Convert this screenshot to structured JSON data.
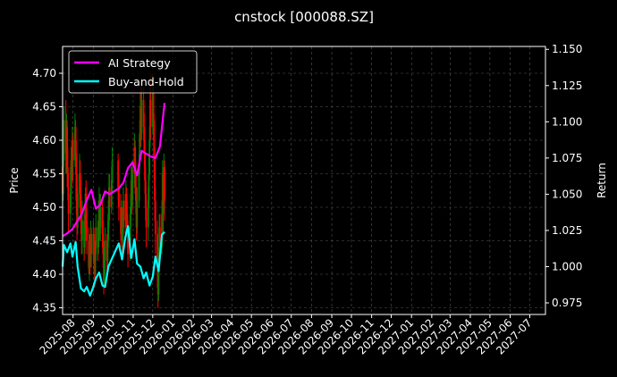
{
  "chart_data": {
    "type": "line",
    "title": "cnstock [000088.SZ]",
    "ylabel_left": "Price",
    "ylabel_right": "Return",
    "ylim_left": [
      4.34,
      4.74
    ],
    "ylim_right": [
      0.967,
      1.152
    ],
    "yticks_left": [
      "4.35",
      "4.40",
      "4.45",
      "4.50",
      "4.55",
      "4.60",
      "4.65",
      "4.70"
    ],
    "yticks_right": [
      "0.975",
      "1.000",
      "1.025",
      "1.050",
      "1.075",
      "1.100",
      "1.125",
      "1.150"
    ],
    "xlim": [
      "2025-07-16",
      "2027-07-25"
    ],
    "xticks": [
      "2025-08",
      "2025-09",
      "2025-10",
      "2025-11",
      "2025-12",
      "2026-01",
      "2026-02",
      "2026-03",
      "2026-04",
      "2026-05",
      "2026-06",
      "2026-07",
      "2026-08",
      "2026-09",
      "2026-10",
      "2026-11",
      "2026-12",
      "2027-01",
      "2027-02",
      "2027-03",
      "2027-04",
      "2027-05",
      "2027-06",
      "2027-07"
    ],
    "grid": true,
    "legend_position": "top-left",
    "colors": {
      "background": "#000000",
      "up_candle": "#008000",
      "down_candle": "#ff0000",
      "ai_strategy": "#ff00ff",
      "buy_and_hold": "#00ffff",
      "grid": "#555555",
      "axis": "#ffffff"
    },
    "candles": [
      {
        "date": "2025-07-16",
        "open": 4.56,
        "close": 4.52,
        "high": 4.58,
        "low": 4.5
      },
      {
        "date": "2025-07-17",
        "open": 4.52,
        "close": 4.57,
        "high": 4.6,
        "low": 4.51
      },
      {
        "date": "2025-07-18",
        "open": 4.57,
        "close": 4.63,
        "high": 4.65,
        "low": 4.56
      },
      {
        "date": "2025-07-21",
        "open": 4.63,
        "close": 4.58,
        "high": 4.66,
        "low": 4.55
      },
      {
        "date": "2025-07-22",
        "open": 4.58,
        "close": 4.62,
        "high": 4.64,
        "low": 4.55
      },
      {
        "date": "2025-07-23",
        "open": 4.62,
        "close": 4.56,
        "high": 4.63,
        "low": 4.53
      },
      {
        "date": "2025-07-24",
        "open": 4.56,
        "close": 4.53,
        "high": 4.59,
        "low": 4.51
      },
      {
        "date": "2025-07-25",
        "open": 4.53,
        "close": 4.49,
        "high": 4.55,
        "low": 4.46
      },
      {
        "date": "2025-07-28",
        "open": 4.49,
        "close": 4.52,
        "high": 4.56,
        "low": 4.47
      },
      {
        "date": "2025-07-29",
        "open": 4.52,
        "close": 4.57,
        "high": 4.59,
        "low": 4.5
      },
      {
        "date": "2025-07-30",
        "open": 4.57,
        "close": 4.55,
        "high": 4.6,
        "low": 4.53
      },
      {
        "date": "2025-07-31",
        "open": 4.55,
        "close": 4.6,
        "high": 4.62,
        "low": 4.54
      },
      {
        "date": "2025-08-01",
        "open": 4.6,
        "close": 4.57,
        "high": 4.61,
        "low": 4.54
      },
      {
        "date": "2025-08-04",
        "open": 4.57,
        "close": 4.62,
        "high": 4.64,
        "low": 4.56
      },
      {
        "date": "2025-08-05",
        "open": 4.62,
        "close": 4.58,
        "high": 4.63,
        "low": 4.55
      },
      {
        "date": "2025-08-06",
        "open": 4.58,
        "close": 4.51,
        "high": 4.6,
        "low": 4.49
      },
      {
        "date": "2025-08-07",
        "open": 4.51,
        "close": 4.47,
        "high": 4.53,
        "low": 4.45
      },
      {
        "date": "2025-08-08",
        "open": 4.47,
        "close": 4.52,
        "high": 4.55,
        "low": 4.46
      },
      {
        "date": "2025-08-11",
        "open": 4.52,
        "close": 4.55,
        "high": 4.58,
        "low": 4.5
      },
      {
        "date": "2025-08-12",
        "open": 4.55,
        "close": 4.52,
        "high": 4.57,
        "low": 4.49
      },
      {
        "date": "2025-08-13",
        "open": 4.52,
        "close": 4.48,
        "high": 4.54,
        "low": 4.46
      },
      {
        "date": "2025-08-14",
        "open": 4.48,
        "close": 4.45,
        "high": 4.5,
        "low": 4.43
      },
      {
        "date": "2025-08-15",
        "open": 4.45,
        "close": 4.48,
        "high": 4.51,
        "low": 4.43
      },
      {
        "date": "2025-08-18",
        "open": 4.48,
        "close": 4.44,
        "high": 4.49,
        "low": 4.42
      },
      {
        "date": "2025-08-19",
        "open": 4.44,
        "close": 4.47,
        "high": 4.5,
        "low": 4.43
      },
      {
        "date": "2025-08-20",
        "open": 4.47,
        "close": 4.52,
        "high": 4.53,
        "low": 4.45
      },
      {
        "date": "2025-08-21",
        "open": 4.52,
        "close": 4.48,
        "high": 4.54,
        "low": 4.46
      },
      {
        "date": "2025-08-22",
        "open": 4.48,
        "close": 4.45,
        "high": 4.5,
        "low": 4.43
      },
      {
        "date": "2025-08-25",
        "open": 4.45,
        "close": 4.41,
        "high": 4.47,
        "low": 4.4
      },
      {
        "date": "2025-08-26",
        "open": 4.41,
        "close": 4.44,
        "high": 4.46,
        "low": 4.39
      },
      {
        "date": "2025-08-27",
        "open": 4.44,
        "close": 4.42,
        "high": 4.46,
        "low": 4.4
      },
      {
        "date": "2025-08-28",
        "open": 4.42,
        "close": 4.46,
        "high": 4.48,
        "low": 4.41
      },
      {
        "date": "2025-08-29",
        "open": 4.46,
        "close": 4.43,
        "high": 4.47,
        "low": 4.41
      },
      {
        "date": "2025-09-01",
        "open": 4.43,
        "close": 4.46,
        "high": 4.48,
        "low": 4.42
      },
      {
        "date": "2025-09-02",
        "open": 4.46,
        "close": 4.42,
        "high": 4.47,
        "low": 4.4
      },
      {
        "date": "2025-09-03",
        "open": 4.42,
        "close": 4.4,
        "high": 4.44,
        "low": 4.38
      },
      {
        "date": "2025-09-04",
        "open": 4.4,
        "close": 4.43,
        "high": 4.45,
        "low": 4.39
      },
      {
        "date": "2025-09-05",
        "open": 4.43,
        "close": 4.47,
        "high": 4.49,
        "low": 4.42
      },
      {
        "date": "2025-09-08",
        "open": 4.47,
        "close": 4.44,
        "high": 4.48,
        "low": 4.42
      },
      {
        "date": "2025-09-09",
        "open": 4.44,
        "close": 4.48,
        "high": 4.51,
        "low": 4.43
      },
      {
        "date": "2025-09-10",
        "open": 4.48,
        "close": 4.51,
        "high": 4.53,
        "low": 4.46
      },
      {
        "date": "2025-09-11",
        "open": 4.51,
        "close": 4.47,
        "high": 4.52,
        "low": 4.45
      },
      {
        "date": "2025-09-12",
        "open": 4.47,
        "close": 4.5,
        "high": 4.52,
        "low": 4.45
      },
      {
        "date": "2025-09-15",
        "open": 4.5,
        "close": 4.46,
        "high": 4.51,
        "low": 4.44
      },
      {
        "date": "2025-09-16",
        "open": 4.46,
        "close": 4.43,
        "high": 4.48,
        "low": 4.41
      },
      {
        "date": "2025-09-17",
        "open": 4.43,
        "close": 4.39,
        "high": 4.45,
        "low": 4.37
      },
      {
        "date": "2025-09-18",
        "open": 4.39,
        "close": 4.42,
        "high": 4.44,
        "low": 4.38
      },
      {
        "date": "2025-09-19",
        "open": 4.42,
        "close": 4.45,
        "high": 4.47,
        "low": 4.4
      },
      {
        "date": "2025-09-22",
        "open": 4.45,
        "close": 4.42,
        "high": 4.46,
        "low": 4.4
      },
      {
        "date": "2025-09-23",
        "open": 4.42,
        "close": 4.45,
        "high": 4.48,
        "low": 4.41
      },
      {
        "date": "2025-09-24",
        "open": 4.45,
        "close": 4.49,
        "high": 4.51,
        "low": 4.44
      },
      {
        "date": "2025-09-25",
        "open": 4.49,
        "close": 4.53,
        "high": 4.55,
        "low": 4.47
      },
      {
        "date": "2025-09-26",
        "open": 4.53,
        "close": 4.5,
        "high": 4.55,
        "low": 4.48
      },
      {
        "date": "2025-09-29",
        "open": 4.5,
        "close": 4.54,
        "high": 4.56,
        "low": 4.49
      },
      {
        "date": "2025-09-30",
        "open": 4.54,
        "close": 4.57,
        "high": 4.59,
        "low": 4.52
      },
      {
        "date": "2025-10-09",
        "open": 4.57,
        "close": 4.53,
        "high": 4.58,
        "low": 4.51
      },
      {
        "date": "2025-10-10",
        "open": 4.53,
        "close": 4.5,
        "high": 4.55,
        "low": 4.48
      },
      {
        "date": "2025-10-13",
        "open": 4.5,
        "close": 4.46,
        "high": 4.52,
        "low": 4.44
      },
      {
        "date": "2025-10-14",
        "open": 4.46,
        "close": 4.49,
        "high": 4.51,
        "low": 4.45
      },
      {
        "date": "2025-10-15",
        "open": 4.49,
        "close": 4.45,
        "high": 4.5,
        "low": 4.43
      },
      {
        "date": "2025-10-16",
        "open": 4.45,
        "close": 4.47,
        "high": 4.49,
        "low": 4.43
      },
      {
        "date": "2025-10-17",
        "open": 4.47,
        "close": 4.51,
        "high": 4.53,
        "low": 4.46
      },
      {
        "date": "2025-10-20",
        "open": 4.51,
        "close": 4.48,
        "high": 4.52,
        "low": 4.46
      },
      {
        "date": "2025-10-21",
        "open": 4.48,
        "close": 4.52,
        "high": 4.54,
        "low": 4.47
      },
      {
        "date": "2025-10-22",
        "open": 4.52,
        "close": 4.49,
        "high": 4.53,
        "low": 4.47
      },
      {
        "date": "2025-10-23",
        "open": 4.49,
        "close": 4.46,
        "high": 4.51,
        "low": 4.44
      },
      {
        "date": "2025-10-24",
        "open": 4.46,
        "close": 4.43,
        "high": 4.48,
        "low": 4.41
      },
      {
        "date": "2025-10-27",
        "open": 4.43,
        "close": 4.47,
        "high": 4.49,
        "low": 4.42
      },
      {
        "date": "2025-10-28",
        "open": 4.47,
        "close": 4.5,
        "high": 4.52,
        "low": 4.45
      },
      {
        "date": "2025-10-29",
        "open": 4.5,
        "close": 4.54,
        "high": 4.56,
        "low": 4.49
      },
      {
        "date": "2025-10-30",
        "open": 4.54,
        "close": 4.51,
        "high": 4.56,
        "low": 4.49
      },
      {
        "date": "2025-10-31",
        "open": 4.51,
        "close": 4.55,
        "high": 4.57,
        "low": 4.5
      },
      {
        "date": "2025-11-03",
        "open": 4.55,
        "close": 4.59,
        "high": 4.61,
        "low": 4.53
      },
      {
        "date": "2025-11-04",
        "open": 4.59,
        "close": 4.55,
        "high": 4.6,
        "low": 4.52
      },
      {
        "date": "2025-11-05",
        "open": 4.55,
        "close": 4.51,
        "high": 4.57,
        "low": 4.49
      },
      {
        "date": "2025-11-06",
        "open": 4.51,
        "close": 4.47,
        "high": 4.53,
        "low": 4.45
      },
      {
        "date": "2025-11-07",
        "open": 4.47,
        "close": 4.51,
        "high": 4.53,
        "low": 4.46
      },
      {
        "date": "2025-11-10",
        "open": 4.51,
        "close": 4.56,
        "high": 4.58,
        "low": 4.5
      },
      {
        "date": "2025-11-11",
        "open": 4.56,
        "close": 4.61,
        "high": 4.63,
        "low": 4.55
      },
      {
        "date": "2025-11-12",
        "open": 4.61,
        "close": 4.65,
        "high": 4.67,
        "low": 4.59
      },
      {
        "date": "2025-11-13",
        "open": 4.65,
        "close": 4.61,
        "high": 4.68,
        "low": 4.59
      },
      {
        "date": "2025-11-14",
        "open": 4.61,
        "close": 4.66,
        "high": 4.69,
        "low": 4.6
      },
      {
        "date": "2025-11-17",
        "open": 4.66,
        "close": 4.62,
        "high": 4.68,
        "low": 4.6
      },
      {
        "date": "2025-11-18",
        "open": 4.62,
        "close": 4.58,
        "high": 4.64,
        "low": 4.56
      },
      {
        "date": "2025-11-19",
        "open": 4.58,
        "close": 4.54,
        "high": 4.6,
        "low": 4.52
      },
      {
        "date": "2025-11-20",
        "open": 4.54,
        "close": 4.5,
        "high": 4.56,
        "low": 4.48
      },
      {
        "date": "2025-11-21",
        "open": 4.5,
        "close": 4.47,
        "high": 4.52,
        "low": 4.44
      },
      {
        "date": "2025-11-24",
        "open": 4.47,
        "close": 4.51,
        "high": 4.53,
        "low": 4.45
      },
      {
        "date": "2025-11-25",
        "open": 4.51,
        "close": 4.55,
        "high": 4.58,
        "low": 4.5
      },
      {
        "date": "2025-11-26",
        "open": 4.55,
        "close": 4.6,
        "high": 4.62,
        "low": 4.54
      },
      {
        "date": "2025-11-27",
        "open": 4.6,
        "close": 4.66,
        "high": 4.69,
        "low": 4.59
      },
      {
        "date": "2025-11-28",
        "open": 4.66,
        "close": 4.62,
        "high": 4.7,
        "low": 4.6
      },
      {
        "date": "2025-12-01",
        "open": 4.62,
        "close": 4.67,
        "high": 4.7,
        "low": 4.61
      },
      {
        "date": "2025-12-02",
        "open": 4.67,
        "close": 4.63,
        "high": 4.69,
        "low": 4.6
      },
      {
        "date": "2025-12-03",
        "open": 4.63,
        "close": 4.57,
        "high": 4.64,
        "low": 4.54
      },
      {
        "date": "2025-12-04",
        "open": 4.57,
        "close": 4.51,
        "high": 4.59,
        "low": 4.48
      },
      {
        "date": "2025-12-05",
        "open": 4.51,
        "close": 4.46,
        "high": 4.53,
        "low": 4.43
      },
      {
        "date": "2025-12-08",
        "open": 4.46,
        "close": 4.41,
        "high": 4.48,
        "low": 4.38
      },
      {
        "date": "2025-12-09",
        "open": 4.41,
        "close": 4.37,
        "high": 4.43,
        "low": 4.35
      },
      {
        "date": "2025-12-10",
        "open": 4.37,
        "close": 4.42,
        "high": 4.44,
        "low": 4.36
      },
      {
        "date": "2025-12-11",
        "open": 4.42,
        "close": 4.47,
        "high": 4.49,
        "low": 4.41
      },
      {
        "date": "2025-12-12",
        "open": 4.47,
        "close": 4.44,
        "high": 4.49,
        "low": 4.42
      },
      {
        "date": "2025-12-15",
        "open": 4.44,
        "close": 4.49,
        "high": 4.51,
        "low": 4.43
      },
      {
        "date": "2025-12-16",
        "open": 4.49,
        "close": 4.55,
        "high": 4.57,
        "low": 4.48
      },
      {
        "date": "2025-12-17",
        "open": 4.55,
        "close": 4.5,
        "high": 4.56,
        "low": 4.46
      },
      {
        "date": "2025-12-18",
        "open": 4.5,
        "close": 4.56,
        "high": 4.58,
        "low": 4.49
      },
      {
        "date": "2025-12-19",
        "open": 4.56,
        "close": 4.51,
        "high": 4.57,
        "low": 4.48
      }
    ],
    "series": [
      {
        "name": "AI Strategy",
        "color": "#ff00ff",
        "axis": "right",
        "x": [
          "2025-07-16",
          "2025-07-23",
          "2025-07-31",
          "2025-08-07",
          "2025-08-14",
          "2025-08-22",
          "2025-08-29",
          "2025-09-05",
          "2025-09-12",
          "2025-09-19",
          "2025-09-26",
          "2025-10-10",
          "2025-10-17",
          "2025-10-24",
          "2025-10-31",
          "2025-11-07",
          "2025-11-14",
          "2025-11-21",
          "2025-11-28",
          "2025-12-05",
          "2025-12-12",
          "2025-12-19"
        ],
        "values": [
          1.021,
          1.023,
          1.026,
          1.031,
          1.036,
          1.046,
          1.053,
          1.04,
          1.043,
          1.052,
          1.05,
          1.054,
          1.058,
          1.068,
          1.072,
          1.063,
          1.08,
          1.078,
          1.076,
          1.075,
          1.083,
          1.113
        ]
      },
      {
        "name": "Buy-and-Hold",
        "color": "#00ffff",
        "axis": "right",
        "x": [
          "2025-07-16",
          "2025-07-18",
          "2025-07-23",
          "2025-07-28",
          "2025-07-31",
          "2025-08-05",
          "2025-08-08",
          "2025-08-13",
          "2025-08-18",
          "2025-08-22",
          "2025-08-27",
          "2025-09-01",
          "2025-09-05",
          "2025-09-10",
          "2025-09-15",
          "2025-09-19",
          "2025-09-24",
          "2025-09-29",
          "2025-10-10",
          "2025-10-15",
          "2025-10-20",
          "2025-10-24",
          "2025-10-29",
          "2025-11-03",
          "2025-11-07",
          "2025-11-12",
          "2025-11-17",
          "2025-11-21",
          "2025-11-26",
          "2025-12-01",
          "2025-12-05",
          "2025-12-10",
          "2025-12-15",
          "2025-12-19"
        ],
        "values": [
          1.0,
          1.015,
          1.01,
          1.016,
          1.007,
          1.017,
          1.0,
          0.985,
          0.983,
          0.986,
          0.98,
          0.986,
          0.992,
          0.996,
          0.987,
          0.986,
          1.0,
          1.005,
          1.016,
          1.005,
          1.02,
          1.028,
          1.006,
          1.019,
          1.002,
          1.0,
          0.992,
          0.996,
          0.987,
          0.993,
          1.007,
          0.997,
          1.022,
          1.024
        ]
      }
    ]
  }
}
